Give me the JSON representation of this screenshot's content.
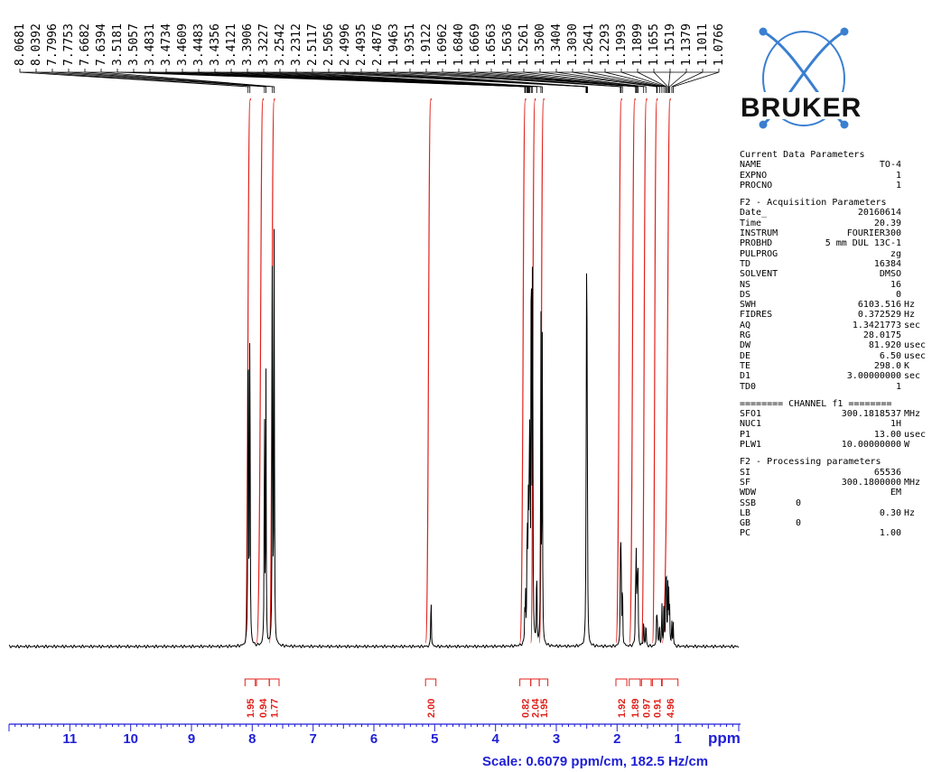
{
  "logo": {
    "text": "BRUKER"
  },
  "peak_list": [
    "8.0681",
    "8.0392",
    "7.7996",
    "7.7753",
    "7.6682",
    "7.6394",
    "3.5181",
    "3.5057",
    "3.4831",
    "3.4734",
    "3.4609",
    "3.4483",
    "3.4356",
    "3.4121",
    "3.3906",
    "3.3227",
    "3.2542",
    "3.2312",
    "2.5117",
    "2.5056",
    "2.4996",
    "2.4935",
    "2.4876",
    "1.9463",
    "1.9351",
    "1.9122",
    "1.6962",
    "1.6840",
    "1.6669",
    "1.6563",
    "1.5636",
    "1.5261",
    "1.3500",
    "1.3404",
    "1.3030",
    "1.2641",
    "1.2293",
    "1.1993",
    "1.1899",
    "1.1655",
    "1.1519",
    "1.1379",
    "1.1011",
    "1.0766"
  ],
  "integrals": [
    {
      "x0": 8.12,
      "x1": 7.95,
      "label": "1.95"
    },
    {
      "x0": 7.93,
      "x1": 7.72,
      "label": "0.94"
    },
    {
      "x0": 7.72,
      "x1": 7.56,
      "label": "1.77"
    },
    {
      "x0": 5.15,
      "x1": 4.98,
      "label": "2.00"
    },
    {
      "x0": 3.6,
      "x1": 3.42,
      "label": "0.82"
    },
    {
      "x0": 3.42,
      "x1": 3.28,
      "label": "2.04"
    },
    {
      "x0": 3.28,
      "x1": 3.14,
      "label": "1.95"
    },
    {
      "x0": 2.02,
      "x1": 1.84,
      "label": "1.92"
    },
    {
      "x0": 1.8,
      "x1": 1.62,
      "label": "1.89"
    },
    {
      "x0": 1.6,
      "x1": 1.44,
      "label": "0.97"
    },
    {
      "x0": 1.42,
      "x1": 1.27,
      "label": "0.91"
    },
    {
      "x0": 1.26,
      "x1": 1.0,
      "label": "4.96"
    }
  ],
  "params": {
    "current": {
      "title": "Current Data Parameters",
      "rows": [
        {
          "k": "NAME",
          "v": "TO-4",
          "u": ""
        },
        {
          "k": "EXPNO",
          "v": "1",
          "u": ""
        },
        {
          "k": "PROCNO",
          "v": "1",
          "u": ""
        }
      ]
    },
    "acq": {
      "title": "F2 - Acquisition Parameters",
      "rows": [
        {
          "k": "Date_",
          "v": "20160614",
          "u": ""
        },
        {
          "k": "Time",
          "v": "20.39",
          "u": ""
        },
        {
          "k": "INSTRUM",
          "v": "FOURIER300",
          "u": ""
        },
        {
          "k": "PROBHD",
          "v": "5 mm DUL 13C-1",
          "u": ""
        },
        {
          "k": "PULPROG",
          "v": "zg",
          "u": ""
        },
        {
          "k": "TD",
          "v": "16384",
          "u": ""
        },
        {
          "k": "SOLVENT",
          "v": "DMSO",
          "u": ""
        },
        {
          "k": "NS",
          "v": "16",
          "u": ""
        },
        {
          "k": "DS",
          "v": "0",
          "u": ""
        },
        {
          "k": "SWH",
          "v": "6103.516",
          "u": "Hz"
        },
        {
          "k": "FIDRES",
          "v": "0.372529",
          "u": "Hz"
        },
        {
          "k": "AQ",
          "v": "1.3421773",
          "u": "sec"
        },
        {
          "k": "RG",
          "v": "28.0175",
          "u": ""
        },
        {
          "k": "DW",
          "v": "81.920",
          "u": "usec"
        },
        {
          "k": "DE",
          "v": "6.50",
          "u": "usec"
        },
        {
          "k": "TE",
          "v": "298.0",
          "u": "K"
        },
        {
          "k": "D1",
          "v": "3.00000000",
          "u": "sec"
        },
        {
          "k": "TD0",
          "v": "1",
          "u": ""
        }
      ]
    },
    "channel": {
      "title": "======== CHANNEL f1 ========",
      "rows": [
        {
          "k": "SFO1",
          "v": "300.1818537",
          "u": "MHz"
        },
        {
          "k": "NUC1",
          "v": "1H",
          "u": ""
        },
        {
          "k": "P1",
          "v": "13.00",
          "u": "usec"
        },
        {
          "k": "PLW1",
          "v": "10.00000000",
          "u": "W"
        }
      ]
    },
    "proc": {
      "title": "F2 - Processing parameters",
      "rows": [
        {
          "k": "SI",
          "v": "65536",
          "u": ""
        },
        {
          "k": "SF",
          "v": "300.1800000",
          "u": "MHz"
        },
        {
          "k": "WDW",
          "v": "EM",
          "u": ""
        },
        {
          "k": "SSB",
          "v": "0",
          "u": "",
          "left": true
        },
        {
          "k": "LB",
          "v": "0.30",
          "u": "Hz"
        },
        {
          "k": "GB",
          "v": "0",
          "u": "",
          "left": true
        },
        {
          "k": "PC",
          "v": "1.00",
          "u": ""
        }
      ]
    }
  },
  "axis": {
    "unit": "ppm",
    "scale_text": "Scale: 0.6079 ppm/cm, 182.5 Hz/cm"
  },
  "chart_data": {
    "type": "line",
    "title": "",
    "xlabel": "ppm",
    "ylabel": "",
    "xlim": [
      12.0,
      0.0
    ],
    "x_ticks": [
      11,
      10,
      9,
      8,
      7,
      6,
      5,
      4,
      3,
      2,
      1
    ],
    "grid": false,
    "series": [
      {
        "peaks": [
          {
            "ppm": 8.0681,
            "h": 0.78
          },
          {
            "ppm": 8.0392,
            "h": 0.71
          },
          {
            "ppm": 7.7996,
            "h": 0.5
          },
          {
            "ppm": 7.7753,
            "h": 0.47
          },
          {
            "ppm": 7.6682,
            "h": 0.86
          },
          {
            "ppm": 7.6394,
            "h": 0.8
          },
          {
            "ppm": 5.06,
            "h": 0.11
          },
          {
            "ppm": 3.5181,
            "h": 0.06
          },
          {
            "ppm": 3.5057,
            "h": 0.08
          },
          {
            "ppm": 3.4831,
            "h": 0.12
          },
          {
            "ppm": 3.4734,
            "h": 0.17
          },
          {
            "ppm": 3.4609,
            "h": 0.2
          },
          {
            "ppm": 3.4483,
            "h": 0.28
          },
          {
            "ppm": 3.4356,
            "h": 0.4
          },
          {
            "ppm": 3.4121,
            "h": 0.92
          },
          {
            "ppm": 3.3906,
            "h": 0.86
          },
          {
            "ppm": 3.3227,
            "h": 0.16
          },
          {
            "ppm": 3.2542,
            "h": 0.64
          },
          {
            "ppm": 3.2312,
            "h": 0.55
          },
          {
            "ppm": 2.5117,
            "h": 0.12
          },
          {
            "ppm": 2.5056,
            "h": 0.22
          },
          {
            "ppm": 2.4996,
            "h": 0.6
          },
          {
            "ppm": 2.4935,
            "h": 0.22
          },
          {
            "ppm": 2.4876,
            "h": 0.12
          },
          {
            "ppm": 1.9463,
            "h": 0.14
          },
          {
            "ppm": 1.9351,
            "h": 0.21
          },
          {
            "ppm": 1.9122,
            "h": 0.13
          },
          {
            "ppm": 1.6962,
            "h": 0.13
          },
          {
            "ppm": 1.684,
            "h": 0.16
          },
          {
            "ppm": 1.6669,
            "h": 0.14
          },
          {
            "ppm": 1.6563,
            "h": 0.11
          },
          {
            "ppm": 1.5636,
            "h": 0.06
          },
          {
            "ppm": 1.5261,
            "h": 0.05
          },
          {
            "ppm": 1.35,
            "h": 0.05
          },
          {
            "ppm": 1.3404,
            "h": 0.06
          },
          {
            "ppm": 1.303,
            "h": 0.05
          },
          {
            "ppm": 1.2641,
            "h": 0.08
          },
          {
            "ppm": 1.2293,
            "h": 0.1
          },
          {
            "ppm": 1.1993,
            "h": 0.12
          },
          {
            "ppm": 1.1899,
            "h": 0.11
          },
          {
            "ppm": 1.1655,
            "h": 0.1
          },
          {
            "ppm": 1.1519,
            "h": 0.09
          },
          {
            "ppm": 1.1379,
            "h": 0.07
          },
          {
            "ppm": 1.1011,
            "h": 0.05
          },
          {
            "ppm": 1.0766,
            "h": 0.04
          }
        ]
      }
    ]
  }
}
